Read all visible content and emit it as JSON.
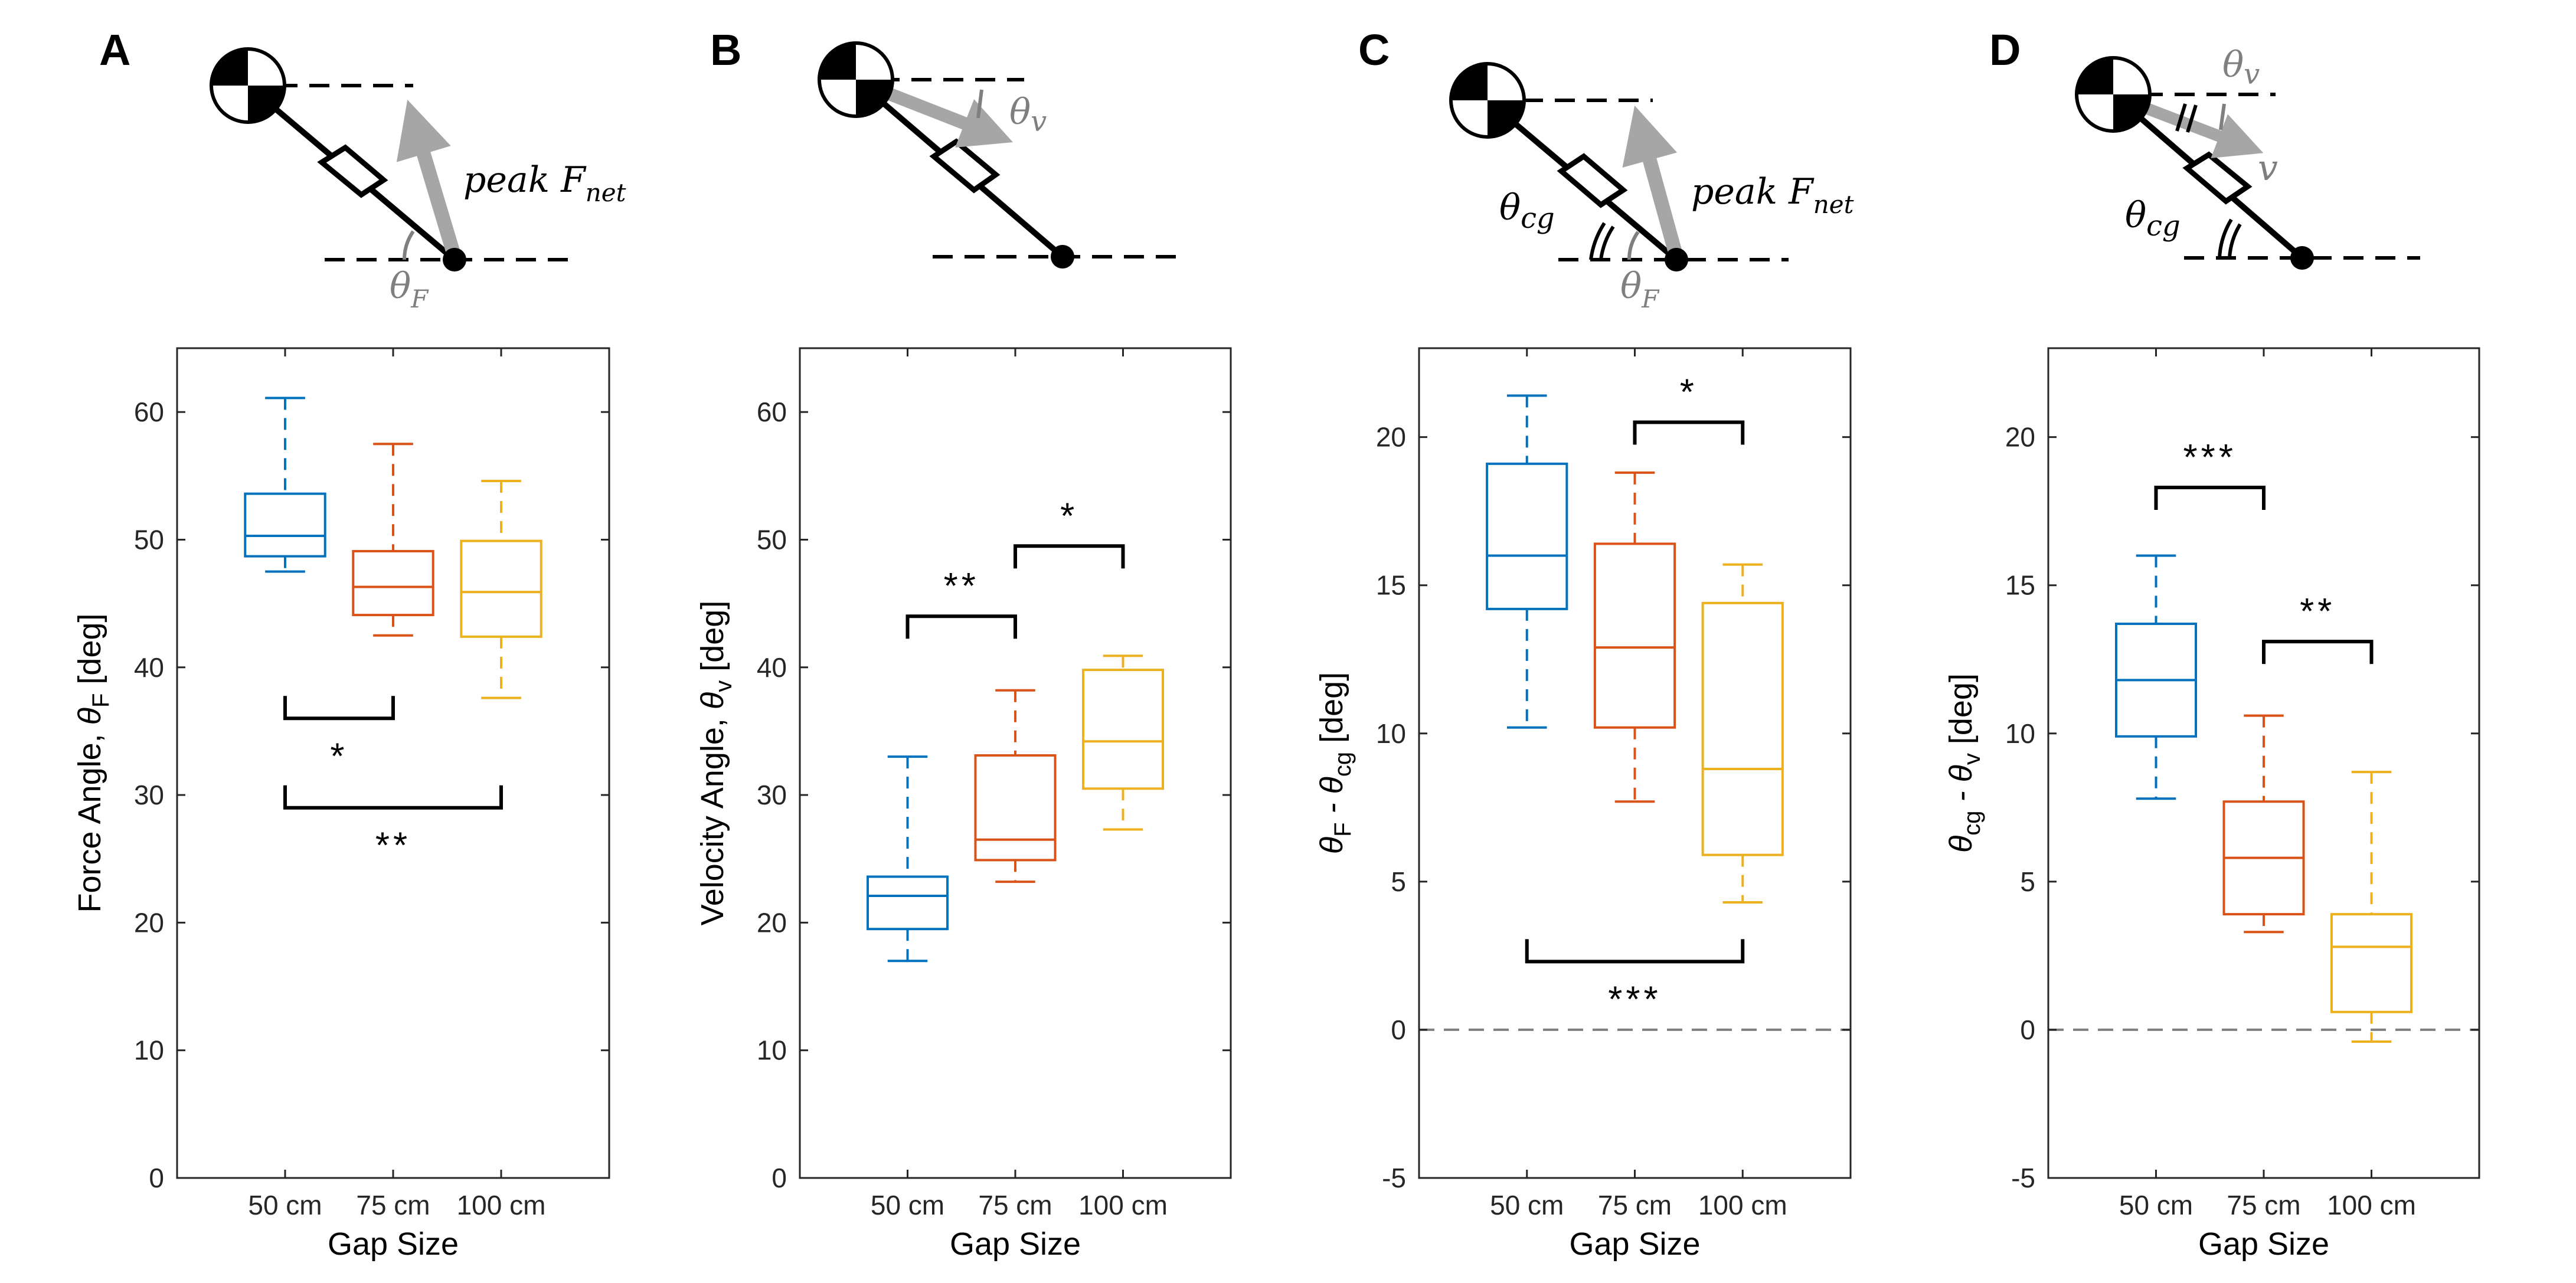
{
  "figure": {
    "panel_letters": [
      "A",
      "B",
      "C",
      "D"
    ]
  },
  "schematics": {
    "A": {
      "labels": [
        "peak F",
        "net",
        "θ",
        "F"
      ]
    },
    "B": {
      "labels": [
        "θ",
        "v"
      ]
    },
    "C": {
      "labels": [
        "θ",
        "cg",
        "peak F",
        "net",
        "θ",
        "F"
      ]
    },
    "D": {
      "labels": [
        "θ",
        "v",
        "v",
        "θ",
        "cg"
      ]
    }
  },
  "colors": {
    "series": [
      "#0072BD",
      "#D95319",
      "#EDB120"
    ],
    "axis": "#262626",
    "arrow": "#a6a6a6",
    "zero_line": "#7f7f7f"
  },
  "chart_data": [
    {
      "id": "A",
      "type": "box",
      "categories": [
        "50 cm",
        "75 cm",
        "100 cm"
      ],
      "xlabel": "Gap Size",
      "ylabel": {
        "main": "Force Angle, ",
        "sym": "θ",
        "sub": "F",
        "unit": " [deg]"
      },
      "ylim": [
        0,
        65
      ],
      "yticks": [
        0,
        10,
        20,
        30,
        40,
        50,
        60
      ],
      "zero_line": false,
      "boxes": [
        {
          "min": 47.5,
          "q1": 48.7,
          "median": 50.3,
          "q3": 53.6,
          "max": 61.1
        },
        {
          "min": 42.5,
          "q1": 44.1,
          "median": 46.3,
          "q3": 49.1,
          "max": 57.5
        },
        {
          "min": 37.6,
          "q1": 42.4,
          "median": 45.9,
          "q3": 49.9,
          "max": 54.6
        }
      ],
      "significance": [
        {
          "from": 0,
          "to": 1,
          "y": 36.0,
          "label": "*",
          "dir": "down"
        },
        {
          "from": 0,
          "to": 2,
          "y": 29.0,
          "label": "**",
          "dir": "down"
        }
      ]
    },
    {
      "id": "B",
      "type": "box",
      "categories": [
        "50 cm",
        "75 cm",
        "100 cm"
      ],
      "xlabel": "Gap Size",
      "ylabel": {
        "main": "Velocity Angle, ",
        "sym": "θ",
        "sub": "v",
        "unit": " [deg]"
      },
      "ylim": [
        0,
        65
      ],
      "yticks": [
        0,
        10,
        20,
        30,
        40,
        50,
        60
      ],
      "zero_line": false,
      "boxes": [
        {
          "min": 17.0,
          "q1": 19.5,
          "median": 22.1,
          "q3": 23.6,
          "max": 33.0
        },
        {
          "min": 23.2,
          "q1": 24.9,
          "median": 26.5,
          "q3": 33.1,
          "max": 38.2
        },
        {
          "min": 27.3,
          "q1": 30.5,
          "median": 34.2,
          "q3": 39.8,
          "max": 40.9
        }
      ],
      "significance": [
        {
          "from": 0,
          "to": 1,
          "y": 44.0,
          "label": "**",
          "dir": "up"
        },
        {
          "from": 1,
          "to": 2,
          "y": 49.5,
          "label": "*",
          "dir": "up"
        }
      ]
    },
    {
      "id": "C",
      "type": "box",
      "categories": [
        "50 cm",
        "75 cm",
        "100 cm"
      ],
      "xlabel": "Gap Size",
      "ylabel": {
        "main": "",
        "sym": "θ",
        "sub": "F",
        "sym2": " - θ",
        "sub2": "cg",
        "unit": " [deg]"
      },
      "ylim": [
        -5,
        23
      ],
      "yticks": [
        -5,
        0,
        5,
        10,
        15,
        20
      ],
      "zero_line": true,
      "boxes": [
        {
          "min": 10.2,
          "q1": 14.2,
          "median": 16.0,
          "q3": 19.1,
          "max": 21.4
        },
        {
          "min": 7.7,
          "q1": 10.2,
          "median": 12.9,
          "q3": 16.4,
          "max": 18.8
        },
        {
          "min": 4.3,
          "q1": 5.9,
          "median": 8.8,
          "q3": 14.4,
          "max": 15.7
        }
      ],
      "significance": [
        {
          "from": 1,
          "to": 2,
          "y": 20.5,
          "label": "*",
          "dir": "up"
        },
        {
          "from": 0,
          "to": 2,
          "y": 2.3,
          "label": "***",
          "dir": "down"
        }
      ]
    },
    {
      "id": "D",
      "type": "box",
      "categories": [
        "50 cm",
        "75 cm",
        "100 cm"
      ],
      "xlabel": "Gap Size",
      "ylabel": {
        "main": "",
        "sym": "θ",
        "sub": "cg",
        "sym2": " - θ",
        "sub2": "v",
        "unit": " [deg]"
      },
      "ylim": [
        -5,
        23
      ],
      "yticks": [
        -5,
        0,
        5,
        10,
        15,
        20
      ],
      "zero_line": true,
      "boxes": [
        {
          "min": 7.8,
          "q1": 9.9,
          "median": 11.8,
          "q3": 13.7,
          "max": 16.0
        },
        {
          "min": 3.3,
          "q1": 3.9,
          "median": 5.8,
          "q3": 7.7,
          "max": 10.6
        },
        {
          "min": -0.4,
          "q1": 0.6,
          "median": 2.8,
          "q3": 3.9,
          "max": 8.7
        }
      ],
      "significance": [
        {
          "from": 0,
          "to": 1,
          "y": 18.3,
          "label": "***",
          "dir": "up"
        },
        {
          "from": 1,
          "to": 2,
          "y": 13.1,
          "label": "**",
          "dir": "up"
        }
      ]
    }
  ]
}
